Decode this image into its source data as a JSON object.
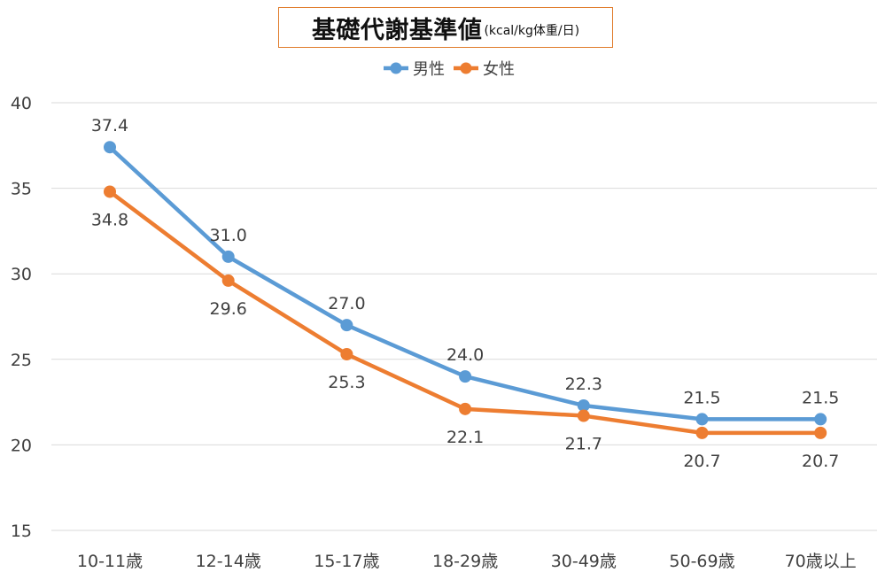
{
  "chart_data": {
    "type": "line",
    "title": "基礎代謝基準値",
    "title_unit": "(kcal/kg体重/日)",
    "categories": [
      "10-11歳",
      "12-14歳",
      "15-17歳",
      "18-29歳",
      "30-49歳",
      "50-69歳",
      "70歳以上"
    ],
    "series": [
      {
        "name": "男性",
        "values": [
          37.4,
          31.0,
          27.0,
          24.0,
          22.3,
          21.5,
          21.5
        ],
        "color": "#5b9bd5",
        "labels": [
          "37.4",
          "31.0",
          "27.0",
          "24.0",
          "22.3",
          "21.5",
          "21.5"
        ],
        "label_position": "above"
      },
      {
        "name": "女性",
        "values": [
          34.8,
          29.6,
          25.3,
          22.1,
          21.7,
          20.7,
          20.7
        ],
        "color": "#ed7d31",
        "labels": [
          "34.8",
          "29.6",
          "25.3",
          "22.1",
          "21.7",
          "20.7",
          "20.7"
        ],
        "label_position": "below"
      }
    ],
    "ylim": [
      15,
      40
    ],
    "yticks": [
      "15",
      "20",
      "25",
      "30",
      "35",
      "40"
    ],
    "grid": true,
    "legend": "top-center",
    "xlabel": "",
    "ylabel": ""
  }
}
